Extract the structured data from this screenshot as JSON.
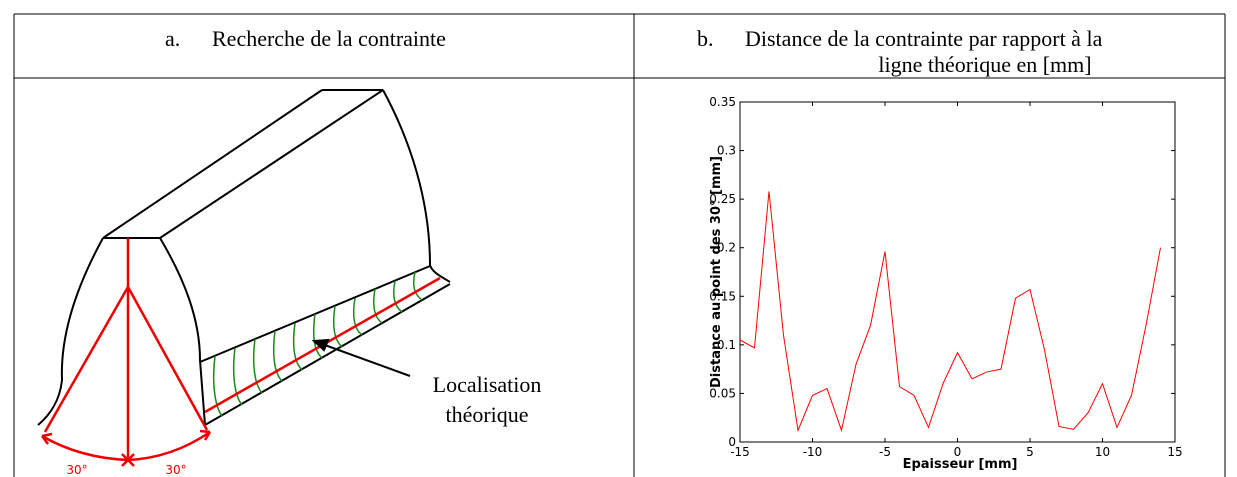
{
  "headers": [
    {
      "marker": "a.",
      "lines": [
        "Recherche de la contrainte"
      ]
    },
    {
      "marker": "b.",
      "lines": [
        "Distance de la contrainte par rapport à la",
        "ligne théorique en [mm]"
      ]
    }
  ],
  "diagram": {
    "annotation": [
      "Localisation",
      "théorique"
    ],
    "angle_labels": [
      "30°",
      "30°"
    ]
  },
  "chart_data": {
    "type": "line",
    "xlabel": "Epaisseur [mm]",
    "ylabel": "Distance au point des 30° [mm]",
    "x": [
      -15,
      -14,
      -13,
      -12,
      -11,
      -10,
      -9,
      -8,
      -7,
      -6,
      -5,
      -4,
      -3,
      -2,
      -1,
      0,
      1,
      2,
      3,
      4,
      5,
      6,
      7,
      8,
      9,
      10,
      11,
      12,
      13,
      14
    ],
    "values": [
      0.105,
      0.097,
      0.258,
      0.11,
      0.012,
      0.048,
      0.055,
      0.012,
      0.08,
      0.12,
      0.196,
      0.057,
      0.048,
      0.015,
      0.06,
      0.092,
      0.065,
      0.072,
      0.075,
      0.148,
      0.157,
      0.095,
      0.016,
      0.013,
      0.03,
      0.06,
      0.015,
      0.048,
      0.12,
      0.2
    ],
    "color": "#ff0000",
    "xlim": [
      -15,
      15
    ],
    "xticks": [
      -15,
      -10,
      -5,
      0,
      5,
      10,
      15
    ],
    "ylim": [
      0,
      0.35
    ],
    "yticks": [
      0,
      0.05,
      0.1,
      0.15,
      0.2,
      0.25,
      0.3,
      0.35
    ],
    "grid": false
  }
}
